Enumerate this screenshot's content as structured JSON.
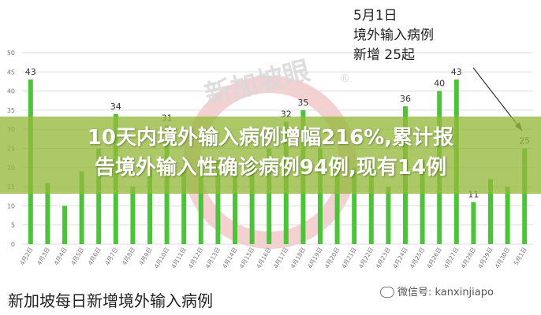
{
  "watermark": {
    "text": "新加坡眼",
    "mark": "®"
  },
  "callout": {
    "line1": "5月1日",
    "line2": "境外输入病例",
    "line3": "新增 25起"
  },
  "headline": {
    "line1": "10天内境外输入病例增幅216%,累计报",
    "line2": "告境外输入性确诊病例94例,现有14例"
  },
  "caption": "新加坡每日新增境外输入病例",
  "wechat": {
    "label": "微信号: kanxinjiapo",
    "icon": "wechat-icon"
  },
  "colors": {
    "bar": "#4cc43a",
    "grid": "#dcdcdc",
    "axis_text": "#777777",
    "banner": "#96b93c"
  },
  "chart_data": {
    "type": "bar",
    "categories": [
      "4月2日",
      "4月3日",
      "4月4日",
      "4月5日",
      "4月6日",
      "4月7日",
      "4月8日",
      "4月9日",
      "4月10日",
      "4月11日",
      "4月12日",
      "4月13日",
      "4月14日",
      "4月15日",
      "4月16日",
      "4月17日",
      "4月18日",
      "4月19日",
      "4月20日",
      "4月21日",
      "4月22日",
      "4月23日",
      "4月24日",
      "4月25日",
      "4月26日",
      "4月27日",
      "4月28日",
      "4月29日",
      "4月30日",
      "5月1日"
    ],
    "values": [
      43,
      16,
      10,
      19,
      25,
      34,
      15,
      20,
      31,
      20,
      21,
      22,
      20,
      22,
      25,
      32,
      35,
      25,
      22,
      20,
      21,
      15,
      36,
      22,
      40,
      43,
      11,
      17,
      15,
      25
    ],
    "labels": [
      "43",
      "",
      "",
      "",
      "",
      "34",
      "",
      "",
      "31",
      "",
      "",
      "",
      "",
      "",
      "",
      "32",
      "35",
      "",
      "",
      "",
      "",
      "",
      "36",
      "",
      "40",
      "43",
      "11",
      "",
      "",
      "25"
    ],
    "yticks": [
      0,
      5,
      10,
      15,
      20,
      25,
      30,
      35,
      40,
      45,
      50
    ],
    "ylim": [
      0,
      50
    ],
    "grid": true
  }
}
